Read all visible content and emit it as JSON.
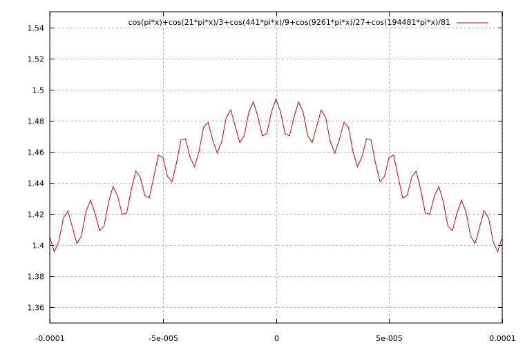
{
  "chart_data": {
    "type": "line",
    "title": "",
    "xlabel": "",
    "ylabel": "",
    "xlim": [
      -0.0001,
      0.0001
    ],
    "ylim": [
      1.35,
      1.55
    ],
    "x_ticks": [
      -0.0001,
      -5e-05,
      0,
      5e-05,
      0.0001
    ],
    "x_tick_labels": [
      "-0.0001",
      "-5e-005",
      "0",
      "5e-005",
      "0.0001"
    ],
    "y_ticks": [
      1.36,
      1.38,
      1.4,
      1.42,
      1.44,
      1.46,
      1.48,
      1.5,
      1.52,
      1.54
    ],
    "y_tick_labels": [
      "1.36",
      "1.38",
      "1.4",
      "1.42",
      "1.44",
      "1.46",
      "1.48",
      "1.5",
      "1.52",
      "1.54"
    ],
    "grid": true,
    "legend_position": "top-right",
    "series": [
      {
        "name": "cos(pi*x)+cos(21*pi*x)/3+cos(441*pi*x)/9+cos(9261*pi*x)/27+cos(194481*pi*x)/81",
        "color": "#cc0000",
        "function": "cos(pi*x)+cos(21*pi*x)/3+cos(441*pi*x)/9+cos(9261*pi*x)/27+cos(194481*pi*x)/81",
        "samples": 101
      }
    ]
  }
}
